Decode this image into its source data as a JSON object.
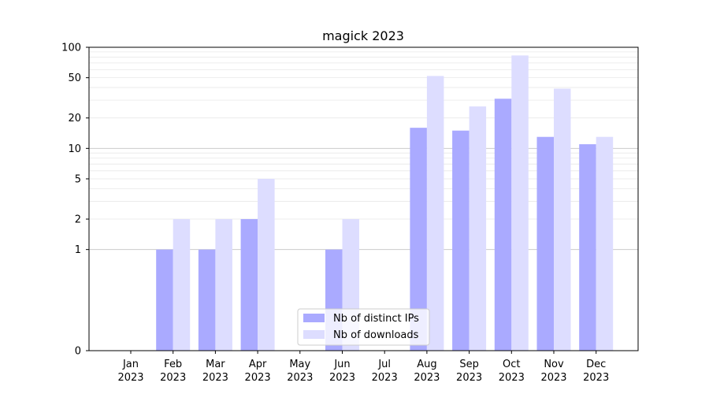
{
  "chart_data": {
    "type": "bar",
    "title": "magick 2023",
    "xlabel": "",
    "ylabel": "",
    "yscale": "symlog",
    "ylim": [
      0,
      100
    ],
    "yticks": [
      {
        "value": 0,
        "label": "0"
      },
      {
        "value": 1,
        "label": "1"
      },
      {
        "value": 2,
        "label": "2"
      },
      {
        "value": 5,
        "label": "5"
      },
      {
        "value": 10,
        "label": "10"
      },
      {
        "value": 20,
        "label": "20"
      },
      {
        "value": 50,
        "label": "50"
      },
      {
        "value": 100,
        "label": "100"
      }
    ],
    "categories": [
      {
        "month": "Jan",
        "year": "2023"
      },
      {
        "month": "Feb",
        "year": "2023"
      },
      {
        "month": "Mar",
        "year": "2023"
      },
      {
        "month": "Apr",
        "year": "2023"
      },
      {
        "month": "May",
        "year": "2023"
      },
      {
        "month": "Jun",
        "year": "2023"
      },
      {
        "month": "Jul",
        "year": "2023"
      },
      {
        "month": "Aug",
        "year": "2023"
      },
      {
        "month": "Sep",
        "year": "2023"
      },
      {
        "month": "Oct",
        "year": "2023"
      },
      {
        "month": "Nov",
        "year": "2023"
      },
      {
        "month": "Dec",
        "year": "2023"
      }
    ],
    "series": [
      {
        "name": "Nb of distinct IPs",
        "color": "#aaaaff",
        "values": [
          0,
          1,
          1,
          2,
          0,
          1,
          0,
          16,
          15,
          31,
          13,
          11
        ]
      },
      {
        "name": "Nb of downloads",
        "color": "#ddddff",
        "values": [
          0,
          2,
          2,
          5,
          0,
          2,
          0,
          52,
          26,
          83,
          39,
          13
        ]
      }
    ],
    "grid": true,
    "legend_position": "bottom-center"
  }
}
